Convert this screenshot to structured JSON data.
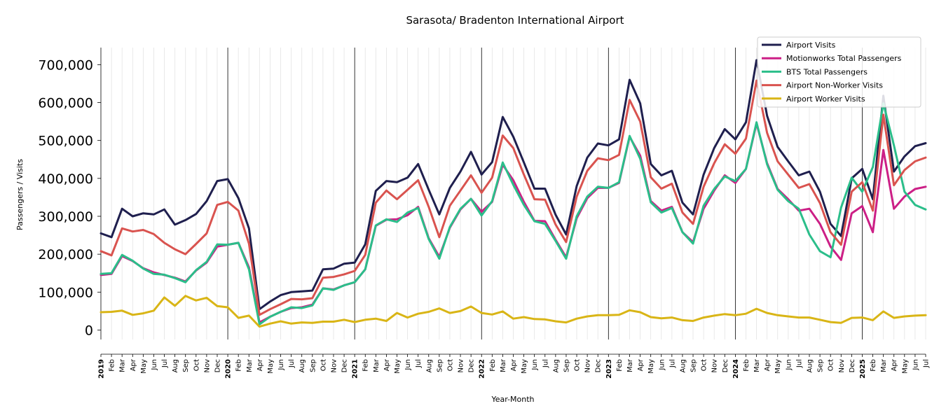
{
  "chart_data": {
    "type": "line",
    "title": "Sarasota/ Bradenton International Airport",
    "xlabel": "Year-Month",
    "ylabel": "Passengers / Visits",
    "ylim": [
      -25000,
      745000
    ],
    "yticks": [
      0,
      100000,
      200000,
      300000,
      400000,
      500000,
      600000,
      700000
    ],
    "ytick_labels": [
      "0",
      "100,000",
      "200,000",
      "300,000",
      "400,000",
      "500,000",
      "600,000",
      "700,000"
    ],
    "grid": "vertical monthly gridlines; darker lines at each January",
    "legend_position": "top-right",
    "x": [
      "2019-01",
      "2019-02",
      "2019-03",
      "2019-04",
      "2019-05",
      "2019-06",
      "2019-07",
      "2019-08",
      "2019-09",
      "2019-10",
      "2019-11",
      "2019-12",
      "2020-01",
      "2020-02",
      "2020-03",
      "2020-04",
      "2020-05",
      "2020-06",
      "2020-07",
      "2020-08",
      "2020-09",
      "2020-10",
      "2020-11",
      "2020-12",
      "2021-01",
      "2021-02",
      "2021-03",
      "2021-04",
      "2021-05",
      "2021-06",
      "2021-07",
      "2021-08",
      "2021-09",
      "2021-10",
      "2021-11",
      "2021-12",
      "2022-01",
      "2022-02",
      "2022-03",
      "2022-04",
      "2022-05",
      "2022-06",
      "2022-07",
      "2022-08",
      "2022-09",
      "2022-10",
      "2022-11",
      "2022-12",
      "2023-01",
      "2023-02",
      "2023-03",
      "2023-04",
      "2023-05",
      "2023-06",
      "2023-07",
      "2023-08",
      "2023-09",
      "2023-10",
      "2023-11",
      "2023-12",
      "2024-01",
      "2024-02",
      "2024-03",
      "2024-04",
      "2024-05",
      "2024-06",
      "2024-07",
      "2024-08",
      "2024-09",
      "2024-10",
      "2024-11",
      "2024-12",
      "2025-01",
      "2025-02",
      "2025-03",
      "2025-04",
      "2025-05",
      "2025-06",
      "2025-07"
    ],
    "xtick_labels": [
      "2019",
      "Feb",
      "Mar",
      "Apr",
      "May",
      "Jun",
      "Jul",
      "Aug",
      "Sep",
      "Oct",
      "Nov",
      "Dec",
      "2020",
      "Feb",
      "Mar",
      "Apr",
      "May",
      "Jun",
      "Jul",
      "Aug",
      "Sep",
      "Oct",
      "Nov",
      "Dec",
      "2021",
      "Feb",
      "Mar",
      "Apr",
      "May",
      "Jun",
      "Jul",
      "Aug",
      "Sep",
      "Oct",
      "Nov",
      "Dec",
      "2022",
      "Feb",
      "Mar",
      "Apr",
      "May",
      "Jun",
      "Jul",
      "Aug",
      "Sep",
      "Oct",
      "Nov",
      "Dec",
      "2023",
      "Feb",
      "Mar",
      "Apr",
      "May",
      "Jun",
      "Jul",
      "Aug",
      "Sep",
      "Oct",
      "Nov",
      "Dec",
      "2024",
      "Feb",
      "Mar",
      "Apr",
      "May",
      "Jun",
      "Jul",
      "Aug",
      "Sep",
      "Oct",
      "Nov",
      "Dec",
      "2025",
      "Feb",
      "Mar",
      "Apr",
      "May",
      "Jun",
      "Jul"
    ],
    "series": [
      {
        "name": "Airport Visits",
        "color": "#1f1f4e",
        "values": [
          255000,
          245000,
          320000,
          300000,
          308000,
          305000,
          318000,
          278000,
          290000,
          306000,
          340000,
          393000,
          398000,
          348000,
          268000,
          55000,
          75000,
          92000,
          100000,
          102000,
          104000,
          160000,
          162000,
          175000,
          178000,
          226000,
          367000,
          393000,
          390000,
          402000,
          438000,
          370000,
          305000,
          375000,
          418000,
          470000,
          410000,
          443000,
          562000,
          510000,
          442000,
          373000,
          373000,
          304000,
          252000,
          380000,
          455000,
          492000,
          487000,
          503000,
          660000,
          598000,
          438000,
          408000,
          420000,
          336000,
          305000,
          410000,
          480000,
          530000,
          503000,
          548000,
          712000,
          565000,
          483000,
          445000,
          408000,
          418000,
          365000,
          280000,
          248000,
          400000,
          425000,
          345000,
          618000,
          418000,
          458000,
          485000,
          493000
        ]
      },
      {
        "name": "Motionworks Total Passengers",
        "color": "#cc1f86",
        "values": [
          145000,
          148000,
          195000,
          182000,
          163000,
          152000,
          145000,
          138000,
          128000,
          157000,
          178000,
          220000,
          225000,
          230000,
          165000,
          20000,
          35000,
          48000,
          58000,
          60000,
          67000,
          110000,
          107000,
          118000,
          126000,
          160000,
          275000,
          291000,
          292000,
          303000,
          325000,
          242000,
          193000,
          270000,
          318000,
          346000,
          312000,
          338000,
          436000,
          395000,
          338000,
          288000,
          287000,
          238000,
          192000,
          295000,
          348000,
          375000,
          375000,
          388000,
          510000,
          460000,
          340000,
          315000,
          325000,
          258000,
          232000,
          320000,
          368000,
          408000,
          388000,
          425000,
          545000,
          440000,
          372000,
          345000,
          315000,
          320000,
          280000,
          220000,
          185000,
          308000,
          327000,
          258000,
          475000,
          320000,
          352000,
          372000,
          378000
        ]
      },
      {
        "name": "BTS Total Passengers",
        "color": "#2bbe8a",
        "values": [
          148000,
          150000,
          198000,
          183000,
          162000,
          148000,
          146000,
          137000,
          126000,
          158000,
          180000,
          226000,
          225000,
          230000,
          160000,
          15000,
          35000,
          48000,
          60000,
          58000,
          65000,
          110000,
          106000,
          118000,
          126000,
          160000,
          276000,
          292000,
          285000,
          310000,
          322000,
          240000,
          188000,
          272000,
          320000,
          346000,
          302000,
          340000,
          442000,
          383000,
          330000,
          287000,
          280000,
          235000,
          188000,
          300000,
          352000,
          378000,
          375000,
          390000,
          512000,
          452000,
          337000,
          310000,
          322000,
          258000,
          228000,
          328000,
          372000,
          405000,
          393000,
          425000,
          548000,
          437000,
          370000,
          340000,
          320000,
          252000,
          208000,
          192000,
          323000,
          402000,
          365000,
          430000,
          598000,
          487000,
          365000,
          330000,
          318000
        ]
      },
      {
        "name": "Airport Non-Worker Visits",
        "color": "#d9534f",
        "values": [
          208000,
          197000,
          268000,
          260000,
          264000,
          253000,
          230000,
          213000,
          200000,
          227000,
          255000,
          330000,
          338000,
          315000,
          228000,
          40000,
          55000,
          68000,
          82000,
          81000,
          84000,
          138000,
          140000,
          147000,
          156000,
          198000,
          336000,
          368000,
          345000,
          370000,
          395000,
          325000,
          245000,
          328000,
          368000,
          408000,
          362000,
          402000,
          513000,
          480000,
          410000,
          345000,
          344000,
          278000,
          232000,
          352000,
          420000,
          453000,
          448000,
          462000,
          607000,
          550000,
          403000,
          373000,
          386000,
          310000,
          280000,
          378000,
          440000,
          490000,
          465000,
          505000,
          658000,
          520000,
          445000,
          410000,
          375000,
          385000,
          335000,
          258000,
          225000,
          365000,
          390000,
          315000,
          568000,
          382000,
          422000,
          445000,
          455000
        ]
      },
      {
        "name": "Airport Worker Visits",
        "color": "#d9b516",
        "values": [
          47000,
          48000,
          51000,
          40000,
          44000,
          51000,
          86000,
          64000,
          90000,
          78000,
          85000,
          63000,
          60000,
          32000,
          38000,
          9000,
          17000,
          23000,
          17000,
          20000,
          19000,
          22000,
          22000,
          27000,
          21000,
          27000,
          30000,
          24000,
          45000,
          33000,
          43000,
          48000,
          57000,
          45000,
          50000,
          62000,
          45000,
          41000,
          49000,
          30000,
          34000,
          29000,
          28000,
          23000,
          20000,
          30000,
          36000,
          39000,
          39000,
          40000,
          52000,
          47000,
          34000,
          31000,
          33000,
          26000,
          24000,
          33000,
          38000,
          42000,
          39000,
          43000,
          56000,
          45000,
          39000,
          36000,
          33000,
          33000,
          27000,
          21000,
          19000,
          32000,
          33000,
          26000,
          49000,
          32000,
          36000,
          38000,
          39000
        ]
      }
    ]
  }
}
